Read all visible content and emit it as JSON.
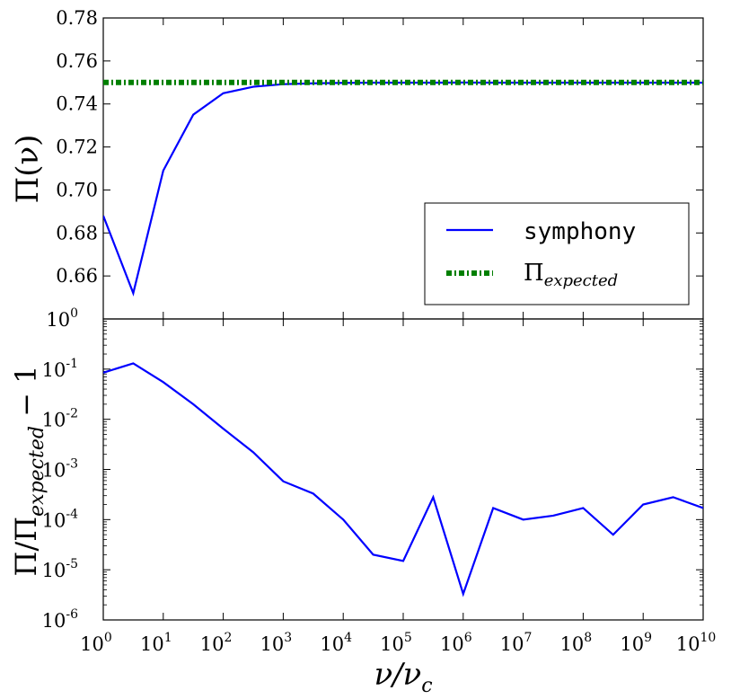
{
  "chart_data": [
    {
      "type": "line",
      "panel": "top",
      "x_scale": "log",
      "y_scale": "linear",
      "xlim": [
        1,
        10000000000
      ],
      "ylim": [
        0.64,
        0.78
      ],
      "yticks": [
        "",
        "0.66",
        "0.68",
        "0.70",
        "0.72",
        "0.74",
        "0.76",
        "0.78"
      ],
      "ylabel": "Π(ν)",
      "grid": false,
      "legend_position": "lower-right",
      "series": [
        {
          "name": "symphony",
          "color": "#0000ff",
          "style": "solid",
          "x": [
            1,
            3.16,
            10,
            31.6,
            100,
            316,
            1000,
            3160,
            10000,
            31600,
            100000,
            316000,
            1000000,
            3160000,
            10000000,
            31600000,
            100000000,
            316000000,
            1000000000,
            3160000000,
            10000000000
          ],
          "y": [
            0.688,
            0.652,
            0.709,
            0.735,
            0.745,
            0.748,
            0.7492,
            0.7496,
            0.7498,
            0.7499,
            0.7499,
            0.7499,
            0.75,
            0.7499,
            0.7499,
            0.7499,
            0.7499,
            0.7499,
            0.7499,
            0.7499,
            0.7499
          ]
        },
        {
          "name": "Π",
          "name_sub": "expected",
          "color": "#007f00",
          "style": "dash-dot",
          "x": [
            1,
            10000000000
          ],
          "y": [
            0.75,
            0.75
          ]
        }
      ]
    },
    {
      "type": "line",
      "panel": "bottom",
      "x_scale": "log",
      "y_scale": "log",
      "xlim": [
        1,
        10000000000
      ],
      "ylim": [
        1e-06,
        1
      ],
      "xlabel": "ν/ν",
      "xlabel_sub": "c",
      "ylabel": "Π/Π",
      "ylabel_sub": "expected",
      "ylabel_tail": " − 1",
      "grid": false,
      "series": [
        {
          "color": "#0000ff",
          "style": "solid",
          "x": [
            1,
            3.16,
            10,
            31.6,
            100,
            316,
            1000,
            3160,
            10000,
            31600,
            100000,
            316000,
            1000000,
            3160000,
            10000000,
            31600000,
            100000000,
            316000000,
            1000000000,
            3160000000,
            10000000000
          ],
          "y": [
            0.085,
            0.13,
            0.055,
            0.02,
            0.0065,
            0.0022,
            0.00058,
            0.00033,
            0.0001,
            2e-05,
            1.5e-05,
            0.00028,
            3.3e-06,
            0.00017,
            0.0001,
            0.00012,
            0.00017,
            5e-05,
            0.0002,
            0.00028,
            0.00017
          ]
        }
      ]
    }
  ]
}
